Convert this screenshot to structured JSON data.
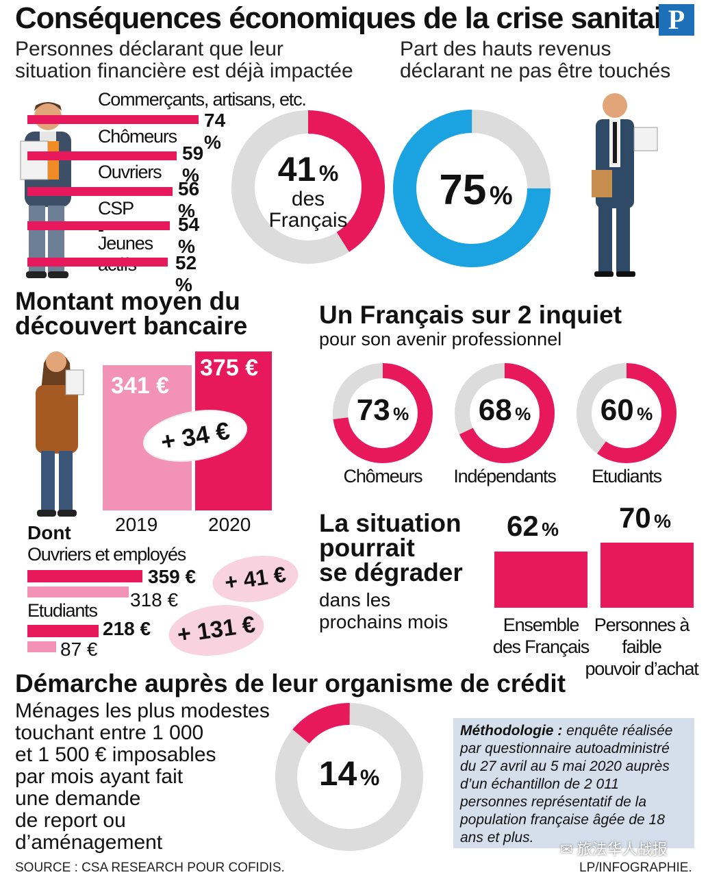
{
  "header": {
    "title": "Conséquences économiques de la crise sanitaire",
    "logo": "P",
    "left_subtitle_1": "Personnes déclarant que leur",
    "left_subtitle_2": "situation financière est déjà impactée",
    "right_subtitle_1": "Part des hauts revenus",
    "right_subtitle_2": "déclarant ne pas être touchés"
  },
  "impacted": {
    "donut_value": "41",
    "donut_unit": "%",
    "donut_line1": "des",
    "donut_line2": "Français"
  },
  "high_income": {
    "value": "75",
    "unit": "%"
  },
  "overdraft": {
    "title_1": "Montant moyen du",
    "title_2": "découvert bancaire",
    "diff": "+ 34 €",
    "dont": "Dont",
    "group1_label": "Ouvriers et employés",
    "group1_2020": "359 €",
    "group1_2019": "318 €",
    "group1_diff": "+ 41 €",
    "group2_label": "Etudiants",
    "group2_2020": "218 €",
    "group2_2019": "87 €",
    "group2_diff": "+ 131 €"
  },
  "worried": {
    "title": "Un Français sur 2 inquiet",
    "subtitle": "pour son avenir professionnel"
  },
  "degrade": {
    "title_1": "La situation",
    "title_2": "pourrait",
    "title_3": "se dégrader",
    "sub_1": "dans les",
    "sub_2": "prochains mois"
  },
  "credit": {
    "title": "Démarche auprès de leur organisme de crédit",
    "lines": [
      "Ménages les plus modestes",
      "touchant entre 1 000",
      "et 1 500 € imposables",
      "par mois ayant fait",
      "une demande",
      "de report ou",
      "d’aménagement"
    ],
    "value": "14",
    "unit": "%"
  },
  "methodology": {
    "bold": "Méthodologie :",
    "text": "enquête réalisée par questionnaire autoadministré du 27 avril au 5 mai 2020 auprès d’un échantillon de 2 011 personnes représentatif de la population française âgée de 18 ans et plus."
  },
  "footer": {
    "source": "SOURCE : CSA RESEARCH POUR COFIDIS.",
    "credit": "LP/INFOGRAPHIE.",
    "watermark": "旅法华人战报"
  },
  "colors": {
    "pink": "#e8185d",
    "light_pink": "#f293b5",
    "blue": "#1aa3e0",
    "grey": "#dcdcdc",
    "method_bg": "#d5dfeb"
  },
  "chart_data": [
    {
      "type": "bar",
      "title": "Personnes déclarant que leur situation financière est déjà impactée",
      "categories": [
        "Commerçants, artisans, etc.",
        "Chômeurs",
        "Ouvriers",
        "CSP -",
        "Jeunes actifs"
      ],
      "values": [
        74,
        59,
        56,
        54,
        52
      ],
      "labels": [
        "74 %",
        "59 %",
        "56 %",
        "54 %",
        "52 %"
      ]
    },
    {
      "type": "bar",
      "title": "Montant moyen du découvert bancaire",
      "categories": [
        "2019",
        "2020"
      ],
      "values": [
        341,
        375
      ],
      "labels": [
        "341 €",
        "375 €"
      ]
    },
    {
      "type": "bar",
      "title": "Dont",
      "categories": [
        "Ouvriers et employés",
        "Etudiants"
      ],
      "series": [
        {
          "name": "2020",
          "values": [
            359,
            218
          ]
        },
        {
          "name": "2019",
          "values": [
            318,
            87
          ]
        }
      ]
    },
    {
      "type": "pie",
      "title": "Un Français sur 2 inquiet",
      "categories": [
        "Chômeurs",
        "Indépendants",
        "Etudiants"
      ],
      "values": [
        73,
        68,
        60
      ],
      "labels": [
        "73",
        "68",
        "60"
      ],
      "unit": "%"
    },
    {
      "type": "bar",
      "title": "La situation pourrait se dégrader",
      "categories": [
        "Ensemble des Français",
        "Personnes à faible pouvoir d’achat"
      ],
      "category_lines": [
        [
          "Ensemble",
          "des Français"
        ],
        [
          "Personnes à faible",
          "pouvoir d’achat"
        ]
      ],
      "values": [
        62,
        70
      ],
      "labels": [
        "62",
        "70"
      ],
      "unit": "%"
    }
  ]
}
